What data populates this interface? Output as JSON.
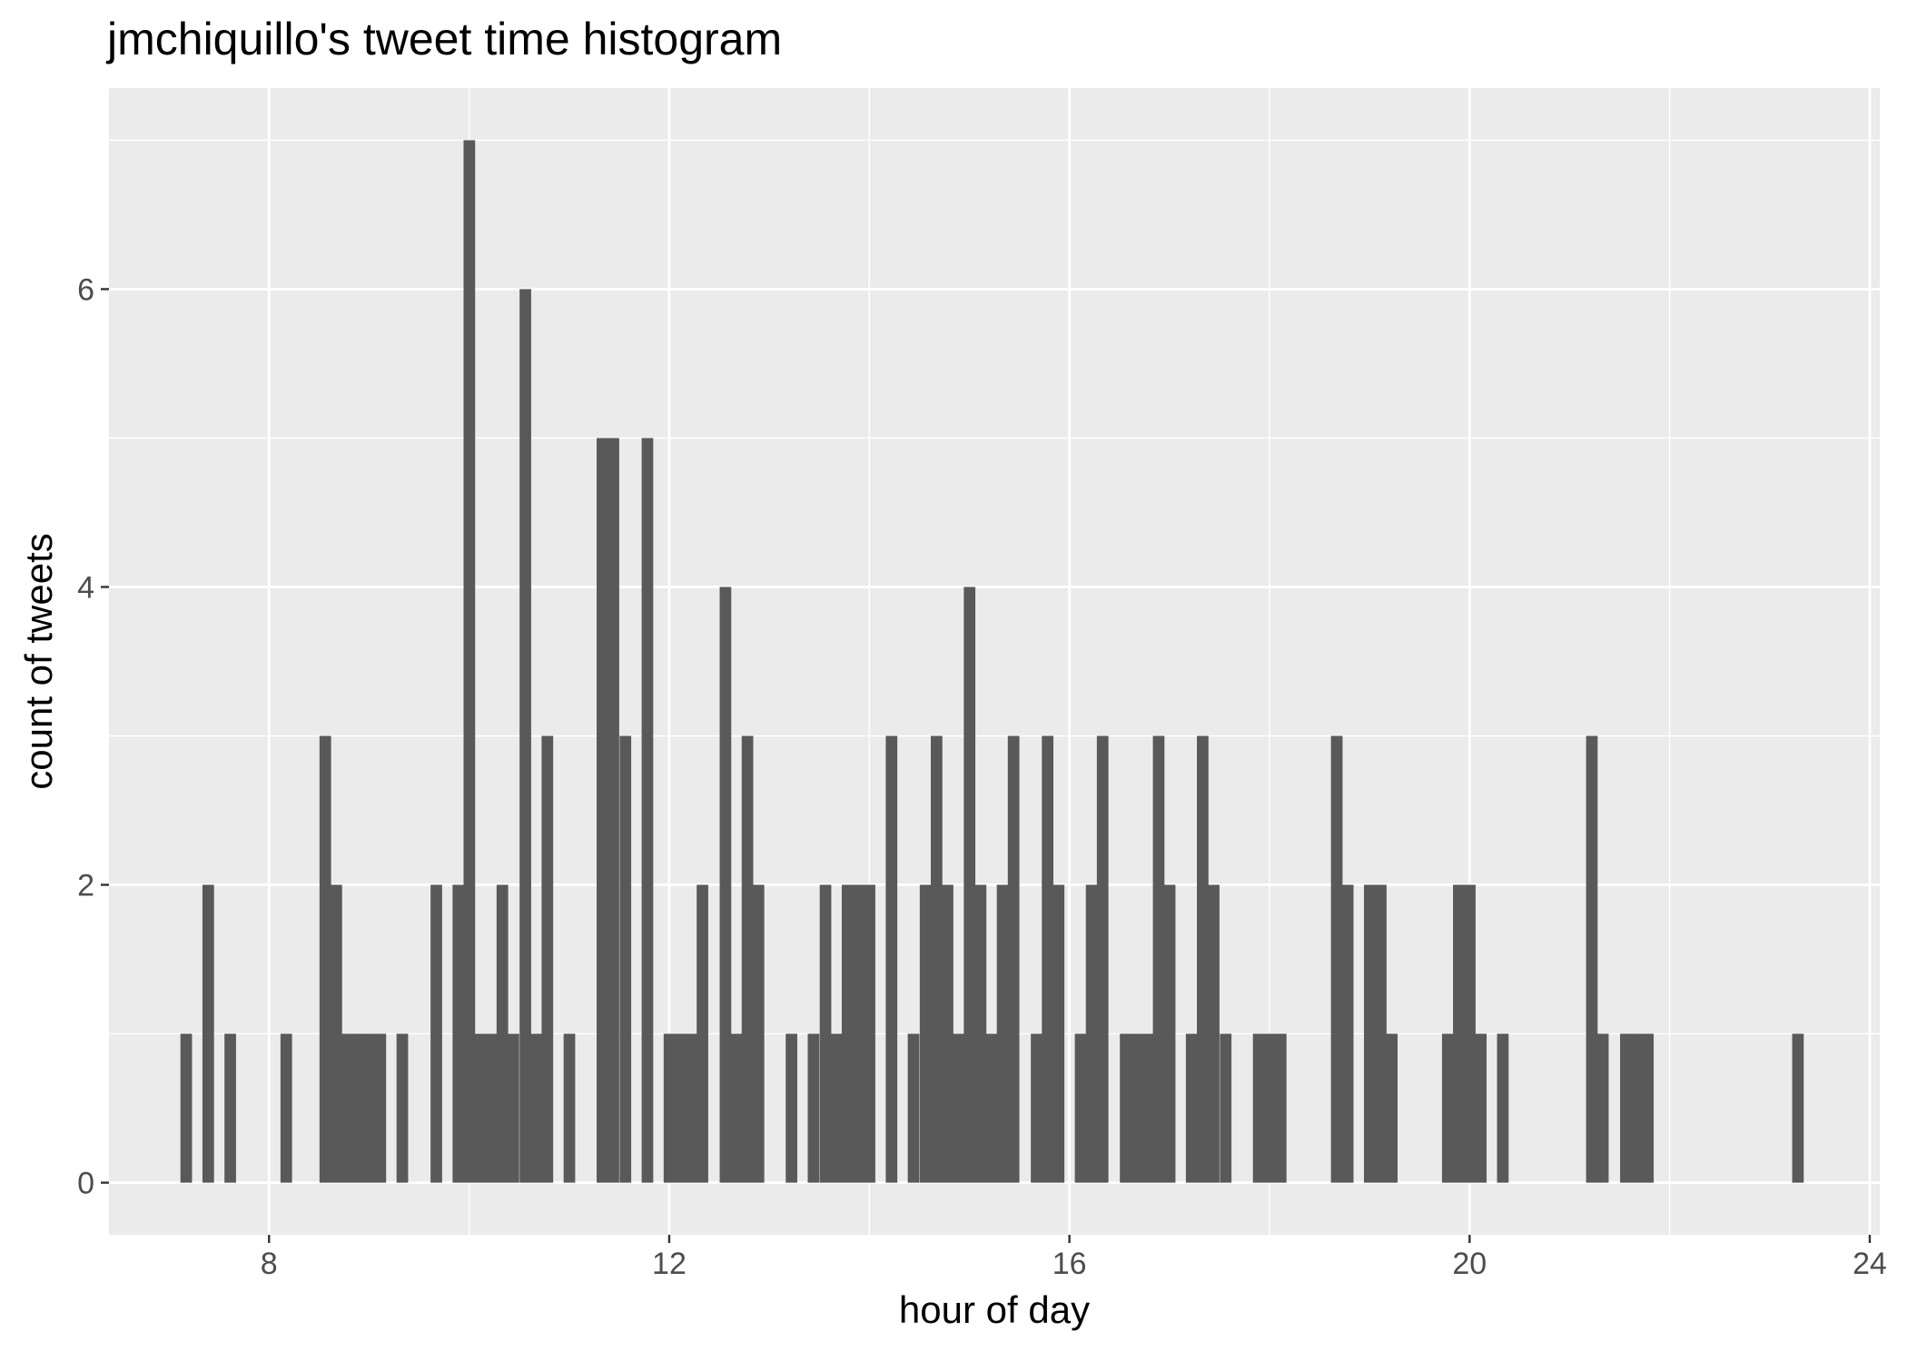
{
  "chart_data": {
    "type": "bar",
    "title": "jmchiquillo's tweet time histogram",
    "xlabel": "hour of day",
    "ylabel": "count of tweets",
    "xlim": [
      6.4,
      24.1
    ],
    "ylim": [
      -0.35,
      7.35
    ],
    "xticks": [
      8,
      12,
      16,
      20,
      24
    ],
    "yticks": [
      0,
      2,
      4,
      6
    ],
    "minor_xticks": [
      10,
      14,
      18,
      22
    ],
    "minor_yticks": [
      1,
      3,
      5,
      7
    ],
    "grid": true,
    "legend": "none",
    "bar_color": "#595959",
    "panel_color": "#ebebeb",
    "grid_color": "#ffffff",
    "bin_width": 0.1111,
    "bins": [
      {
        "x": 7.17,
        "count": 1
      },
      {
        "x": 7.39,
        "count": 2
      },
      {
        "x": 7.61,
        "count": 1
      },
      {
        "x": 8.17,
        "count": 1
      },
      {
        "x": 8.56,
        "count": 3
      },
      {
        "x": 8.67,
        "count": 2
      },
      {
        "x": 8.78,
        "count": 1
      },
      {
        "x": 8.89,
        "count": 1
      },
      {
        "x": 9.0,
        "count": 1
      },
      {
        "x": 9.11,
        "count": 1
      },
      {
        "x": 9.33,
        "count": 1
      },
      {
        "x": 9.67,
        "count": 2
      },
      {
        "x": 9.89,
        "count": 2
      },
      {
        "x": 10.0,
        "count": 7
      },
      {
        "x": 10.11,
        "count": 1
      },
      {
        "x": 10.22,
        "count": 1
      },
      {
        "x": 10.33,
        "count": 2
      },
      {
        "x": 10.44,
        "count": 1
      },
      {
        "x": 10.56,
        "count": 6
      },
      {
        "x": 10.67,
        "count": 1
      },
      {
        "x": 10.78,
        "count": 3
      },
      {
        "x": 11.0,
        "count": 1
      },
      {
        "x": 11.33,
        "count": 5
      },
      {
        "x": 11.44,
        "count": 5
      },
      {
        "x": 11.56,
        "count": 3
      },
      {
        "x": 11.78,
        "count": 5
      },
      {
        "x": 12.0,
        "count": 1
      },
      {
        "x": 12.11,
        "count": 1
      },
      {
        "x": 12.22,
        "count": 1
      },
      {
        "x": 12.33,
        "count": 2
      },
      {
        "x": 12.56,
        "count": 4
      },
      {
        "x": 12.67,
        "count": 1
      },
      {
        "x": 12.78,
        "count": 3
      },
      {
        "x": 12.89,
        "count": 2
      },
      {
        "x": 13.22,
        "count": 1
      },
      {
        "x": 13.44,
        "count": 1
      },
      {
        "x": 13.56,
        "count": 2
      },
      {
        "x": 13.67,
        "count": 1
      },
      {
        "x": 13.78,
        "count": 2
      },
      {
        "x": 13.89,
        "count": 2
      },
      {
        "x": 14.0,
        "count": 2
      },
      {
        "x": 14.22,
        "count": 3
      },
      {
        "x": 14.44,
        "count": 1
      },
      {
        "x": 14.56,
        "count": 2
      },
      {
        "x": 14.67,
        "count": 3
      },
      {
        "x": 14.78,
        "count": 2
      },
      {
        "x": 14.89,
        "count": 1
      },
      {
        "x": 15.0,
        "count": 4
      },
      {
        "x": 15.11,
        "count": 2
      },
      {
        "x": 15.22,
        "count": 1
      },
      {
        "x": 15.33,
        "count": 2
      },
      {
        "x": 15.44,
        "count": 3
      },
      {
        "x": 15.67,
        "count": 1
      },
      {
        "x": 15.78,
        "count": 3
      },
      {
        "x": 15.89,
        "count": 2
      },
      {
        "x": 16.11,
        "count": 1
      },
      {
        "x": 16.22,
        "count": 2
      },
      {
        "x": 16.33,
        "count": 3
      },
      {
        "x": 16.56,
        "count": 1
      },
      {
        "x": 16.67,
        "count": 1
      },
      {
        "x": 16.78,
        "count": 1
      },
      {
        "x": 16.89,
        "count": 3
      },
      {
        "x": 17.0,
        "count": 2
      },
      {
        "x": 17.22,
        "count": 1
      },
      {
        "x": 17.33,
        "count": 3
      },
      {
        "x": 17.44,
        "count": 2
      },
      {
        "x": 17.56,
        "count": 1
      },
      {
        "x": 17.89,
        "count": 1
      },
      {
        "x": 18.0,
        "count": 1
      },
      {
        "x": 18.11,
        "count": 1
      },
      {
        "x": 18.67,
        "count": 3
      },
      {
        "x": 18.78,
        "count": 2
      },
      {
        "x": 19.0,
        "count": 2
      },
      {
        "x": 19.11,
        "count": 2
      },
      {
        "x": 19.22,
        "count": 1
      },
      {
        "x": 19.78,
        "count": 1
      },
      {
        "x": 19.89,
        "count": 2
      },
      {
        "x": 20.0,
        "count": 2
      },
      {
        "x": 20.11,
        "count": 1
      },
      {
        "x": 20.33,
        "count": 1
      },
      {
        "x": 21.22,
        "count": 3
      },
      {
        "x": 21.33,
        "count": 1
      },
      {
        "x": 21.56,
        "count": 1
      },
      {
        "x": 21.67,
        "count": 1
      },
      {
        "x": 21.78,
        "count": 1
      },
      {
        "x": 23.28,
        "count": 1
      }
    ]
  }
}
